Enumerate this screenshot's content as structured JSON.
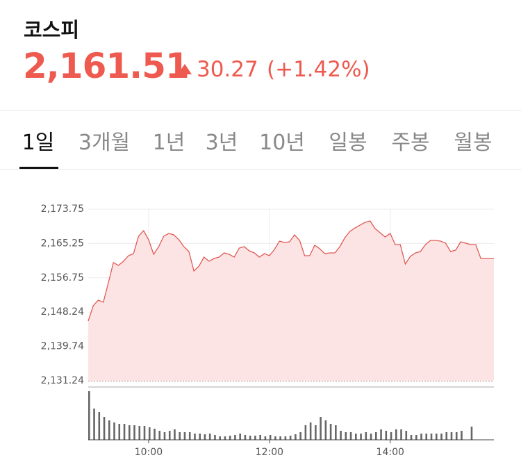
{
  "header": {
    "title": "코스피",
    "price": "2,161.51",
    "change": "30.27",
    "change_pct": "(+1.42%)"
  },
  "tabs": [
    "1일",
    "3개월",
    "1년",
    "3년",
    "10년",
    "일봉",
    "주봉",
    "월봉"
  ],
  "chart_data": {
    "type": "line",
    "x": [
      "09:00",
      "09:05",
      "09:10",
      "09:15",
      "09:20",
      "09:25",
      "09:30",
      "09:35",
      "09:40",
      "09:45",
      "09:50",
      "09:55",
      "10:00",
      "10:05",
      "10:10",
      "10:15",
      "10:20",
      "10:25",
      "10:30",
      "10:35",
      "10:40",
      "10:45",
      "10:50",
      "10:55",
      "11:00",
      "11:05",
      "11:10",
      "11:15",
      "11:20",
      "11:25",
      "11:30",
      "11:35",
      "11:40",
      "11:45",
      "11:50",
      "11:55",
      "12:00",
      "12:05",
      "12:10",
      "12:15",
      "12:20",
      "12:25",
      "12:30",
      "12:35",
      "12:40",
      "12:45",
      "12:50",
      "12:55",
      "13:00",
      "13:05",
      "13:10",
      "13:15",
      "13:20",
      "13:25",
      "13:30",
      "13:35",
      "13:40",
      "13:45",
      "13:50",
      "13:55",
      "14:00",
      "14:05",
      "14:10",
      "14:15",
      "14:20",
      "14:25",
      "14:30",
      "14:35",
      "14:40",
      "14:45",
      "14:50",
      "14:55",
      "15:00",
      "15:05",
      "15:10",
      "15:15",
      "15:20",
      "15:25",
      "15:30",
      "15:43"
    ],
    "series": [
      {
        "color": "#e05a55",
        "fill": "#fde4e4",
        "values": [
          2146.04,
          2149.83,
          2151.2,
          2150.69,
          2155.51,
          2160.5,
          2159.81,
          2160.84,
          2162.22,
          2162.73,
          2167.04,
          2168.41,
          2166.18,
          2162.56,
          2164.46,
          2167.04,
          2167.73,
          2167.38,
          2166.18,
          2164.46,
          2163.25,
          2158.43,
          2159.64,
          2161.87,
          2160.84,
          2161.53,
          2161.87,
          2162.91,
          2162.56,
          2161.87,
          2164.11,
          2164.46,
          2163.42,
          2162.91,
          2161.87,
          2162.73,
          2162.22,
          2163.77,
          2165.83,
          2165.49,
          2165.66,
          2167.38,
          2166.0,
          2162.22,
          2162.22,
          2164.8,
          2163.94,
          2162.73,
          2162.91,
          2162.91,
          2164.46,
          2166.69,
          2168.24,
          2169.1,
          2169.79,
          2170.48,
          2170.82,
          2168.93,
          2167.9,
          2166.86,
          2167.73,
          2164.97,
          2164.97,
          2160.15,
          2162.05,
          2162.91,
          2163.25,
          2164.97,
          2166.0,
          2166.0,
          2165.83,
          2165.32,
          2163.25,
          2163.59,
          2165.66,
          2165.32,
          2164.97,
          2164.97,
          2161.51,
          2161.51
        ]
      },
      {
        "type": "bar",
        "color": "#666666",
        "values": [
          70,
          45,
          40,
          33,
          28,
          25,
          23,
          23,
          21,
          21,
          20,
          20,
          18,
          16,
          13,
          11,
          13,
          15,
          11,
          11,
          11,
          9,
          9,
          8,
          9,
          7,
          5,
          5,
          6,
          7,
          9,
          7,
          6,
          6,
          7,
          5,
          7,
          5,
          5,
          5,
          6,
          8,
          11,
          21,
          25,
          21,
          33,
          28,
          23,
          21,
          13,
          11,
          11,
          9,
          9,
          11,
          9,
          11,
          15,
          13,
          11,
          15,
          15,
          13,
          7,
          7,
          9,
          9,
          9,
          9,
          9,
          11,
          11,
          11,
          13,
          null,
          19,
          null,
          null,
          null
        ]
      }
    ],
    "xlim": [
      "09:00",
      "15:43"
    ],
    "xticks": [
      "10:00",
      "12:00",
      "14:00"
    ],
    "ylim": [
      2131.24,
      2173.75
    ],
    "yticks": [
      {
        "value": 2131.24,
        "label": "2,131.24"
      },
      {
        "value": 2139.74,
        "label": "2,139.74"
      },
      {
        "value": 2148.24,
        "label": "2,148.24"
      },
      {
        "value": 2156.75,
        "label": "2,156.75"
      },
      {
        "value": 2165.25,
        "label": "2,165.25"
      },
      {
        "value": 2173.75,
        "label": "2,173.75"
      }
    ],
    "volume_ylim": [
      0,
      70
    ],
    "grid": true
  }
}
